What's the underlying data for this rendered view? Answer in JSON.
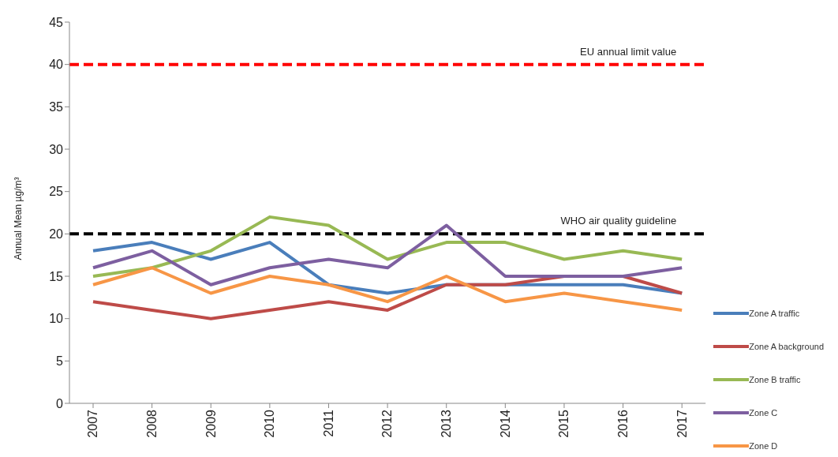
{
  "chart_data": {
    "type": "line",
    "ylabel": "Annual Mean µg/m³",
    "categories": [
      "2007",
      "2008",
      "2009",
      "2010",
      "2011",
      "2012",
      "2013",
      "2014",
      "2015",
      "2016",
      "2017"
    ],
    "series": [
      {
        "name": "Zone A traffic",
        "color": "#4a7ebb",
        "values": [
          18,
          19,
          17,
          19,
          14,
          13,
          14,
          14,
          14,
          14,
          13
        ]
      },
      {
        "name": "Zone A background",
        "color": "#be4b48",
        "values": [
          12,
          11,
          10,
          11,
          12,
          11,
          14,
          14,
          15,
          15,
          13
        ]
      },
      {
        "name": "Zone B traffic",
        "color": "#98b954",
        "values": [
          15,
          16,
          18,
          22,
          21,
          17,
          19,
          19,
          17,
          18,
          17
        ]
      },
      {
        "name": "Zone C",
        "color": "#7d5fa0",
        "values": [
          16,
          18,
          14,
          16,
          17,
          16,
          21,
          15,
          15,
          15,
          16
        ]
      },
      {
        "name": "Zone D",
        "color": "#f79646",
        "values": [
          14,
          16,
          13,
          15,
          14,
          12,
          15,
          12,
          13,
          12,
          11
        ]
      }
    ],
    "ylim": [
      0,
      45
    ],
    "yticks": [
      0,
      5,
      10,
      15,
      20,
      25,
      30,
      35,
      40,
      45
    ],
    "ref_lines": [
      {
        "axis": "y",
        "value": 40,
        "label": "EU annual limit value",
        "color": "#ff0000",
        "line_style": "dashed"
      },
      {
        "axis": "y",
        "value": 20,
        "label": "WHO air quality guideline",
        "color": "#000000",
        "line_style": "dashed"
      }
    ],
    "grid": false,
    "legend": "right",
    "marker": "none",
    "line_style": "solid"
  }
}
